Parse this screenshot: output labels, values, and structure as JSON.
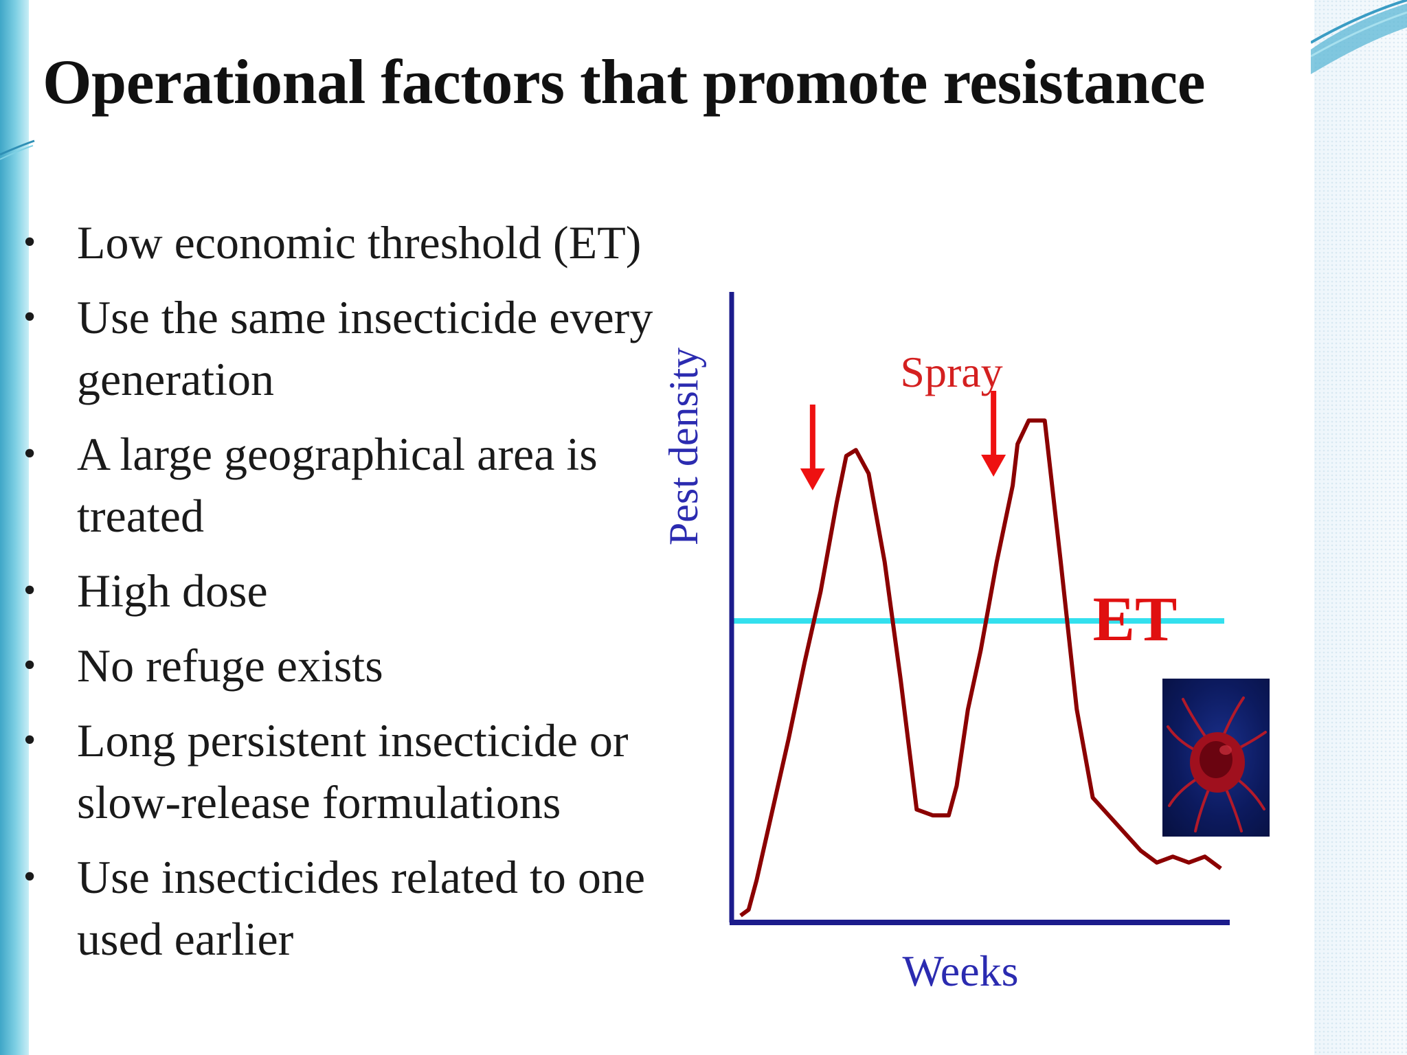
{
  "slide": {
    "title": "Operational factors that promote resistance",
    "bullets": [
      "Low economic threshold (ET)",
      "Use the same insecticide every generation",
      "A large geographical area is treated",
      "High dose",
      "No refuge exists",
      "Long persistent insecticide or slow-release formulations",
      "Use insecticides related to one used earlier"
    ]
  },
  "chart_data": {
    "type": "line",
    "title": "",
    "xlabel": "Weeks",
    "ylabel": "Pest density",
    "annotations": {
      "spray_label": "Spray",
      "threshold_label": "ET"
    },
    "x": [
      0,
      0.5,
      1,
      2,
      3,
      4,
      5,
      6,
      6.6,
      7.2,
      8,
      9,
      10,
      11,
      12,
      13,
      13.5,
      14.2,
      15,
      16,
      17,
      17.3,
      18,
      19,
      20,
      21,
      22,
      23,
      24,
      25,
      26,
      27,
      28,
      29,
      30
    ],
    "series": [
      {
        "values": [
          0,
          1,
          6,
          18,
          30,
          43,
          55,
          70,
          78,
          79,
          75,
          60,
          40,
          18,
          17,
          17,
          22,
          35,
          45,
          60,
          73,
          80,
          84,
          84,
          60,
          35,
          20,
          17,
          14,
          11,
          9,
          10,
          9,
          10,
          8
        ],
        "color": "#8b0000"
      }
    ],
    "threshold": {
      "value": 50,
      "color": "#33e0ee"
    },
    "spray_events_x": [
      4.5,
      15.8
    ],
    "spray_color": "#ee1111",
    "axis_color": "#1c1c8c",
    "xlim": [
      0,
      30
    ],
    "ylim": [
      0,
      100
    ],
    "grid": false,
    "legend": "none"
  }
}
